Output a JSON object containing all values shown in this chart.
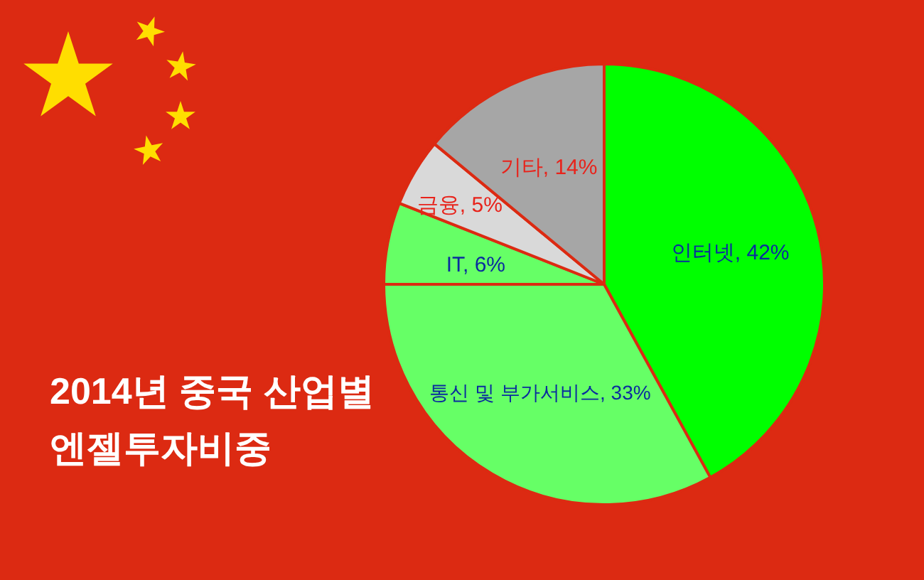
{
  "chart_data": {
    "type": "pie",
    "title": "2014년 중국 산업별 엔젤투자비중",
    "categories": [
      "인터넷",
      "통신 및 부가서비스",
      "IT",
      "금융",
      "기타"
    ],
    "values": [
      42,
      33,
      6,
      5,
      14
    ],
    "colors": [
      "#00ff00",
      "#66ff66",
      "#66ff66",
      "#d9d9d9",
      "#a6a6a6"
    ],
    "value_labels": [
      "42%",
      "33%",
      "6%",
      "5%",
      "14%"
    ]
  }
}
